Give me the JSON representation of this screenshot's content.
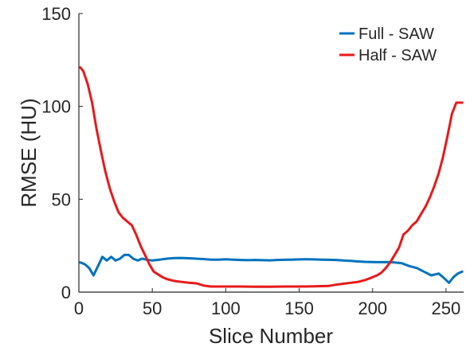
{
  "chart_data": {
    "type": "line",
    "title": "",
    "xlabel": "Slice Number",
    "ylabel": "RMSE (HU)",
    "xlim": [
      0,
      262
    ],
    "ylim": [
      0,
      150
    ],
    "xticks": [
      0,
      50,
      100,
      150,
      200,
      250
    ],
    "yticks": [
      0,
      50,
      100,
      150
    ],
    "grid": false,
    "legend_position": "top-right",
    "series": [
      {
        "name": "Full - SAW",
        "color": "#0072BD",
        "x": [
          1,
          4,
          7,
          10,
          13,
          16,
          19,
          22,
          25,
          28,
          31,
          34,
          37,
          40,
          43,
          46,
          50,
          55,
          60,
          65,
          70,
          75,
          80,
          85,
          90,
          95,
          100,
          105,
          110,
          115,
          120,
          125,
          130,
          135,
          140,
          145,
          150,
          155,
          160,
          165,
          170,
          175,
          180,
          185,
          190,
          195,
          200,
          205,
          210,
          215,
          220,
          225,
          230,
          235,
          240,
          245,
          248,
          252,
          255,
          258,
          261
        ],
        "y": [
          16,
          15,
          13,
          9,
          14,
          19,
          17,
          19,
          17,
          18,
          20,
          20,
          18,
          17,
          18,
          17.5,
          17,
          17.5,
          18,
          18.3,
          18.4,
          18.2,
          18,
          17.8,
          17.5,
          17.5,
          17.7,
          17.5,
          17.3,
          17.2,
          17.3,
          17.2,
          17.1,
          17.3,
          17.4,
          17.5,
          17.6,
          17.7,
          17.6,
          17.5,
          17.4,
          17.3,
          17,
          16.8,
          16.5,
          16.3,
          16.2,
          16.1,
          16.2,
          16,
          15.5,
          14,
          13,
          11,
          9,
          10,
          8,
          5,
          8,
          10,
          11
        ]
      },
      {
        "name": "Half - SAW",
        "color": "#E8191A",
        "x": [
          1,
          3,
          6,
          9,
          12,
          15,
          18,
          21,
          24,
          27,
          30,
          33,
          36,
          39,
          42,
          45,
          48,
          51,
          54,
          57,
          60,
          65,
          70,
          75,
          80,
          85,
          90,
          95,
          100,
          110,
          120,
          130,
          140,
          150,
          160,
          170,
          175,
          180,
          185,
          190,
          195,
          200,
          203,
          206,
          209,
          212,
          215,
          218,
          221,
          224,
          227,
          230,
          233,
          236,
          239,
          242,
          245,
          248,
          251,
          254,
          257,
          260,
          261
        ],
        "y": [
          121,
          119,
          112,
          102,
          88,
          76,
          65,
          56,
          49,
          43,
          40,
          38,
          36,
          31,
          25,
          20,
          15,
          11,
          9.5,
          8,
          7,
          6,
          5.5,
          5,
          4.7,
          3.5,
          3,
          3,
          3,
          3,
          2.9,
          2.9,
          3,
          3,
          3.1,
          3.3,
          4,
          4.5,
          5,
          5.5,
          6.5,
          8,
          9,
          10.5,
          13,
          16,
          20,
          24,
          31,
          33,
          36,
          38,
          42,
          46,
          51,
          57,
          64,
          73,
          84,
          96,
          102,
          102,
          102
        ]
      }
    ]
  }
}
